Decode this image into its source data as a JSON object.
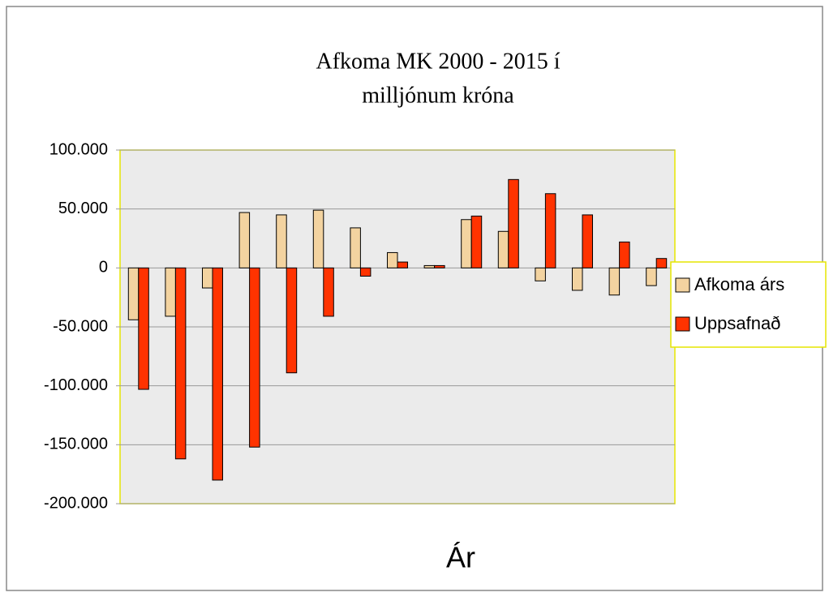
{
  "chart_data": {
    "type": "bar",
    "title": [
      "Afkoma MK 2000 - 2015     í",
      "milljónum króna"
    ],
    "x_label": "Ár",
    "categories": [
      null,
      null,
      null,
      null,
      null,
      null,
      null,
      null,
      null,
      null,
      null,
      null,
      null,
      null,
      null
    ],
    "series": [
      {
        "name": "Afkoma árs",
        "color": "#f3d3a0",
        "values": [
          -44000,
          -41000,
          -17000,
          47000,
          45000,
          49000,
          34000,
          13000,
          2000,
          41000,
          31000,
          -11000,
          -19000,
          -23000,
          -15000
        ]
      },
      {
        "name": "Uppsafnað",
        "color": "#ff3300",
        "values": [
          -103000,
          -162000,
          -180000,
          -152000,
          -89000,
          -41000,
          -7000,
          5000,
          2000,
          44000,
          75000,
          63000,
          45000,
          22000,
          8000
        ]
      }
    ],
    "ylim": [
      -200000,
      100000
    ],
    "yticks": [
      {
        "value": -200000,
        "label": "-200.000"
      },
      {
        "value": -150000,
        "label": "-150.000"
      },
      {
        "value": -100000,
        "label": "-100.000"
      },
      {
        "value": -50000,
        "label": "-50.000"
      },
      0,
      {
        "value": 50000,
        "label": "50.000"
      },
      {
        "value": 100000,
        "label": "100.000"
      }
    ],
    "grid": true,
    "legend": "right"
  }
}
